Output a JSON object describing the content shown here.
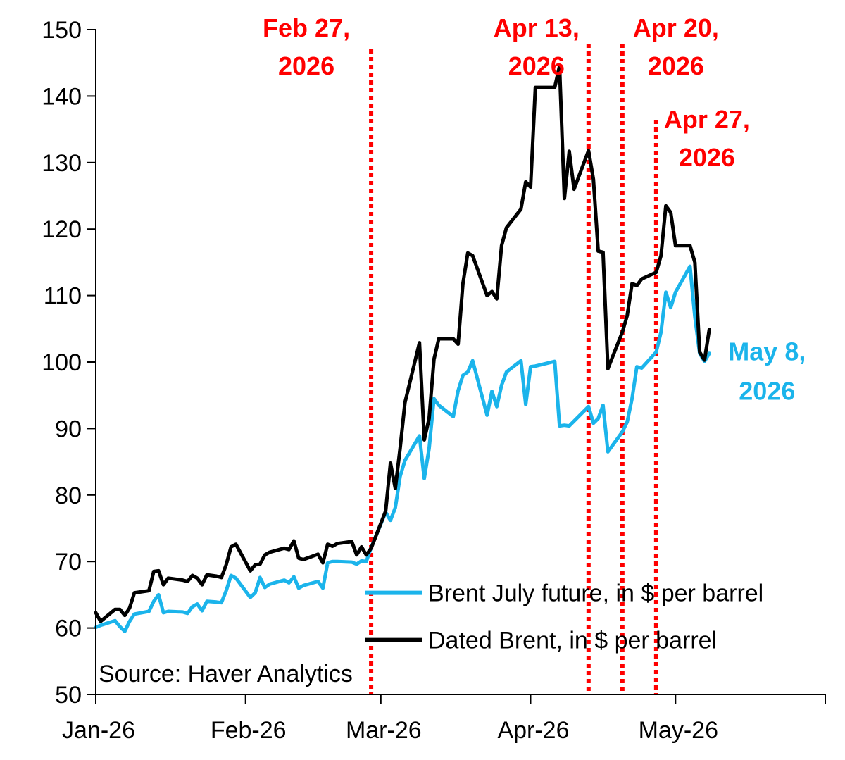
{
  "chart_data": {
    "type": "line",
    "title": "",
    "xlabel": "",
    "ylabel": "",
    "ylim": [
      50,
      150
    ],
    "yticks": [
      50,
      60,
      70,
      80,
      90,
      100,
      110,
      120,
      130,
      140,
      150
    ],
    "xlim": [
      "2026-01-01",
      "2026-06-01"
    ],
    "xticks": [
      {
        "date": "2026-01-01",
        "label": "Jan-26"
      },
      {
        "date": "2026-02-01",
        "label": "Feb-26"
      },
      {
        "date": "2026-03-01",
        "label": "Mar-26"
      },
      {
        "date": "2026-04-01",
        "label": "Apr-26"
      },
      {
        "date": "2026-05-01",
        "label": "May-26"
      }
    ],
    "grid": false,
    "legend_position": "bottom-right",
    "source": "Source: Haver Analytics",
    "series": [
      {
        "name": "Brent July future, in $ per barrel",
        "color": "#1BB4EB",
        "points": [
          [
            "2026-01-01",
            60.1
          ],
          [
            "2026-01-02",
            60.4
          ],
          [
            "2026-01-05",
            61.1
          ],
          [
            "2026-01-06",
            60.2
          ],
          [
            "2026-01-07",
            59.5
          ],
          [
            "2026-01-08",
            61.0
          ],
          [
            "2026-01-09",
            62.1
          ],
          [
            "2026-01-12",
            62.5
          ],
          [
            "2026-01-13",
            64.0
          ],
          [
            "2026-01-14",
            65.0
          ],
          [
            "2026-01-15",
            62.3
          ],
          [
            "2026-01-16",
            62.5
          ],
          [
            "2026-01-19",
            62.4
          ],
          [
            "2026-01-20",
            62.2
          ],
          [
            "2026-01-21",
            63.2
          ],
          [
            "2026-01-22",
            63.6
          ],
          [
            "2026-01-23",
            62.6
          ],
          [
            "2026-01-24",
            64.0
          ],
          [
            "2026-01-26",
            63.9
          ],
          [
            "2026-01-27",
            63.8
          ],
          [
            "2026-01-28",
            65.6
          ],
          [
            "2026-01-29",
            67.9
          ],
          [
            "2026-01-30",
            67.5
          ],
          [
            "2026-02-02",
            64.6
          ],
          [
            "2026-02-03",
            65.3
          ],
          [
            "2026-02-04",
            67.6
          ],
          [
            "2026-02-05",
            66.1
          ],
          [
            "2026-02-06",
            66.6
          ],
          [
            "2026-02-09",
            67.2
          ],
          [
            "2026-02-10",
            66.8
          ],
          [
            "2026-02-11",
            67.7
          ],
          [
            "2026-02-12",
            66.0
          ],
          [
            "2026-02-13",
            66.4
          ],
          [
            "2026-02-16",
            67.0
          ],
          [
            "2026-02-17",
            66.0
          ],
          [
            "2026-02-18",
            69.8
          ],
          [
            "2026-02-19",
            70.0
          ],
          [
            "2026-02-20",
            70.0
          ],
          [
            "2026-02-23",
            69.9
          ],
          [
            "2026-02-24",
            69.6
          ],
          [
            "2026-02-25",
            70.1
          ],
          [
            "2026-02-26",
            70.0
          ],
          [
            "2026-02-27",
            72.1
          ],
          [
            "2026-03-02",
            77.4
          ],
          [
            "2026-03-03",
            76.2
          ],
          [
            "2026-03-04",
            78.1
          ],
          [
            "2026-03-05",
            82.8
          ],
          [
            "2026-03-06",
            85.2
          ],
          [
            "2026-03-09",
            88.9
          ],
          [
            "2026-03-10",
            82.5
          ],
          [
            "2026-03-11",
            87.0
          ],
          [
            "2026-03-12",
            94.5
          ],
          [
            "2026-03-13",
            93.5
          ],
          [
            "2026-03-16",
            91.8
          ],
          [
            "2026-03-17",
            95.7
          ],
          [
            "2026-03-18",
            98.0
          ],
          [
            "2026-03-19",
            98.5
          ],
          [
            "2026-03-20",
            100.2
          ],
          [
            "2026-03-23",
            92.0
          ],
          [
            "2026-03-24",
            95.6
          ],
          [
            "2026-03-25",
            93.3
          ],
          [
            "2026-03-26",
            96.5
          ],
          [
            "2026-03-27",
            98.5
          ],
          [
            "2026-03-30",
            100.2
          ],
          [
            "2026-03-31",
            93.6
          ],
          [
            "2026-04-01",
            99.3
          ],
          [
            "2026-04-02",
            99.4
          ],
          [
            "2026-04-06",
            100.1
          ],
          [
            "2026-04-07",
            90.4
          ],
          [
            "2026-04-08",
            90.5
          ],
          [
            "2026-04-09",
            90.4
          ],
          [
            "2026-04-13",
            93.3
          ],
          [
            "2026-04-14",
            90.8
          ],
          [
            "2026-04-15",
            91.5
          ],
          [
            "2026-04-16",
            93.5
          ],
          [
            "2026-04-17",
            86.5
          ],
          [
            "2026-04-20",
            89.5
          ],
          [
            "2026-04-21",
            91.0
          ],
          [
            "2026-04-22",
            94.5
          ],
          [
            "2026-04-23",
            99.3
          ],
          [
            "2026-04-24",
            99.1
          ],
          [
            "2026-04-27",
            101.5
          ],
          [
            "2026-04-28",
            104.5
          ],
          [
            "2026-04-29",
            110.5
          ],
          [
            "2026-04-30",
            108.2
          ],
          [
            "2026-05-01",
            110.5
          ],
          [
            "2026-05-04",
            114.4
          ],
          [
            "2026-05-05",
            106.8
          ],
          [
            "2026-05-06",
            101.3
          ],
          [
            "2026-05-07",
            100.1
          ],
          [
            "2026-05-08",
            101.3
          ]
        ]
      },
      {
        "name": "Dated Brent, in $ per barrel",
        "color": "#000000",
        "points": [
          [
            "2026-01-01",
            62.3
          ],
          [
            "2026-01-02",
            61.0
          ],
          [
            "2026-01-05",
            62.8
          ],
          [
            "2026-01-06",
            62.8
          ],
          [
            "2026-01-07",
            61.9
          ],
          [
            "2026-01-08",
            63.0
          ],
          [
            "2026-01-09",
            65.3
          ],
          [
            "2026-01-12",
            65.6
          ],
          [
            "2026-01-13",
            68.5
          ],
          [
            "2026-01-14",
            68.6
          ],
          [
            "2026-01-15",
            66.5
          ],
          [
            "2026-01-16",
            67.5
          ],
          [
            "2026-01-19",
            67.2
          ],
          [
            "2026-01-20",
            67.0
          ],
          [
            "2026-01-21",
            67.9
          ],
          [
            "2026-01-22",
            67.5
          ],
          [
            "2026-01-23",
            66.5
          ],
          [
            "2026-01-24",
            68.0
          ],
          [
            "2026-01-26",
            67.8
          ],
          [
            "2026-01-27",
            67.6
          ],
          [
            "2026-01-28",
            69.5
          ],
          [
            "2026-01-29",
            72.2
          ],
          [
            "2026-01-30",
            72.6
          ],
          [
            "2026-02-02",
            68.6
          ],
          [
            "2026-02-03",
            69.5
          ],
          [
            "2026-02-04",
            69.6
          ],
          [
            "2026-02-05",
            71.0
          ],
          [
            "2026-02-06",
            71.4
          ],
          [
            "2026-02-09",
            72.0
          ],
          [
            "2026-02-10",
            71.8
          ],
          [
            "2026-02-11",
            73.1
          ],
          [
            "2026-02-12",
            70.5
          ],
          [
            "2026-02-13",
            70.3
          ],
          [
            "2026-02-16",
            71.1
          ],
          [
            "2026-02-17",
            69.8
          ],
          [
            "2026-02-18",
            72.6
          ],
          [
            "2026-02-19",
            72.3
          ],
          [
            "2026-02-20",
            72.7
          ],
          [
            "2026-02-23",
            73.0
          ],
          [
            "2026-02-24",
            71.0
          ],
          [
            "2026-02-25",
            72.2
          ],
          [
            "2026-02-26",
            71.0
          ],
          [
            "2026-02-27",
            72.0
          ],
          [
            "2026-03-02",
            77.6
          ],
          [
            "2026-03-03",
            84.8
          ],
          [
            "2026-03-04",
            81.0
          ],
          [
            "2026-03-05",
            87.0
          ],
          [
            "2026-03-06",
            93.9
          ],
          [
            "2026-03-09",
            102.9
          ],
          [
            "2026-03-10",
            88.3
          ],
          [
            "2026-03-11",
            91.5
          ],
          [
            "2026-03-12",
            100.4
          ],
          [
            "2026-03-13",
            103.5
          ],
          [
            "2026-03-16",
            103.5
          ],
          [
            "2026-03-17",
            102.7
          ],
          [
            "2026-03-18",
            111.8
          ],
          [
            "2026-03-19",
            116.4
          ],
          [
            "2026-03-20",
            116.0
          ],
          [
            "2026-03-23",
            110.0
          ],
          [
            "2026-03-24",
            110.6
          ],
          [
            "2026-03-25",
            109.5
          ],
          [
            "2026-03-26",
            117.5
          ],
          [
            "2026-03-27",
            120.2
          ],
          [
            "2026-03-30",
            123.0
          ],
          [
            "2026-03-31",
            127.1
          ],
          [
            "2026-04-01",
            126.3
          ],
          [
            "2026-04-02",
            141.3
          ],
          [
            "2026-04-06",
            141.3
          ],
          [
            "2026-04-07",
            144.5
          ],
          [
            "2026-04-08",
            124.6
          ],
          [
            "2026-04-09",
            131.7
          ],
          [
            "2026-04-10",
            126.0
          ],
          [
            "2026-04-13",
            131.8
          ],
          [
            "2026-04-14",
            127.5
          ],
          [
            "2026-04-15",
            116.7
          ],
          [
            "2026-04-16",
            116.5
          ],
          [
            "2026-04-17",
            99.0
          ],
          [
            "2026-04-20",
            104.5
          ],
          [
            "2026-04-21",
            107.0
          ],
          [
            "2026-04-22",
            111.8
          ],
          [
            "2026-04-23",
            111.5
          ],
          [
            "2026-04-24",
            112.5
          ],
          [
            "2026-04-27",
            113.5
          ],
          [
            "2026-04-28",
            116.0
          ],
          [
            "2026-04-29",
            123.5
          ],
          [
            "2026-04-30",
            122.5
          ],
          [
            "2026-05-01",
            117.5
          ],
          [
            "2026-05-04",
            117.5
          ],
          [
            "2026-05-05",
            115.0
          ],
          [
            "2026-05-06",
            101.5
          ],
          [
            "2026-05-07",
            100.3
          ],
          [
            "2026-05-08",
            104.9
          ]
        ]
      }
    ],
    "vertical_markers": [
      {
        "date": "2026-02-27",
        "label_lines": [
          "Feb 27,",
          "2026"
        ],
        "color": "#FF0000",
        "style": "dotted"
      },
      {
        "date": "2026-04-13",
        "label_lines": [
          "Apr 13,",
          "2026"
        ],
        "color": "#FF0000",
        "style": "dotted"
      },
      {
        "date": "2026-04-20",
        "label_lines": [
          "Apr 20,",
          "2026"
        ],
        "color": "#FF0000",
        "style": "dotted"
      },
      {
        "date": "2026-04-27",
        "label_lines": [
          "Apr 27,",
          "2026"
        ],
        "color": "#FF0000",
        "style": "dotted"
      }
    ],
    "end_label": {
      "date": "2026-05-08",
      "label_lines": [
        "May 8,",
        "2026"
      ],
      "color": "#1BB4EB"
    }
  }
}
